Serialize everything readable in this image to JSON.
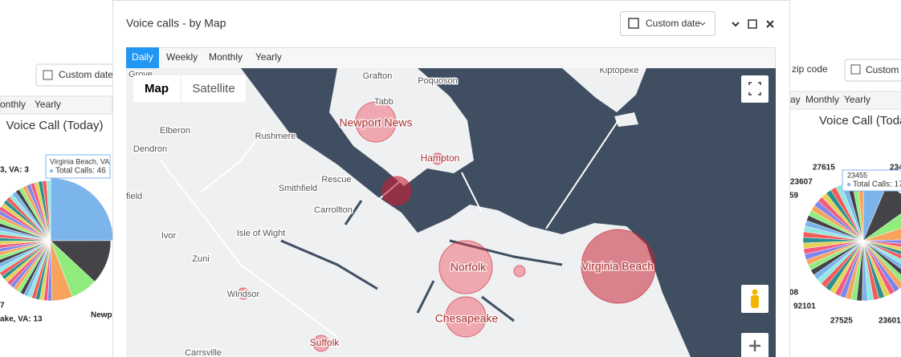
{
  "left_panel": {
    "date_button": "Custom date",
    "tabs": [
      "onthly",
      "Yearly"
    ],
    "title": "Voice Call (Today)",
    "tooltip": {
      "title": "Virginia Beach, VA",
      "label": "Total Calls: 46"
    },
    "pie_labels": [
      "3, VA: 3",
      "7",
      "ake, VA: 13",
      "Newp"
    ]
  },
  "modal": {
    "title": "Voice calls - by Map",
    "date_button": "Custom date",
    "tabs": [
      "Daily",
      "Weekly",
      "Monthly",
      "Yearly"
    ],
    "map_type": [
      "Map",
      "Satellite"
    ],
    "map_labels": [
      "Grove",
      "Grafton",
      "Poquoson",
      "Tabb",
      "Newport News",
      "Kiptopeke",
      "Elberon",
      "Rushmere",
      "Hampton",
      "Dendron",
      "Smithfield",
      "Rescue",
      "field",
      "Carrollton",
      "Isle of Wight",
      "Ivor",
      "Zuni",
      "Norfolk",
      "Virginia Beach",
      "Windsor",
      "Chesapeake",
      "Suffolk",
      "Carrsville"
    ]
  },
  "right_panel": {
    "filter_label": "zip code",
    "date_button": "Custom da",
    "tabs": [
      "ay",
      "Monthly",
      "Yearly"
    ],
    "title": "Voice Call (Today",
    "tooltip": {
      "title": "23455",
      "label": "Total Calls: 17"
    },
    "pie_labels": [
      "27615",
      "234",
      "23607",
      "59",
      "08",
      "92101",
      "27525",
      "23601"
    ]
  }
}
